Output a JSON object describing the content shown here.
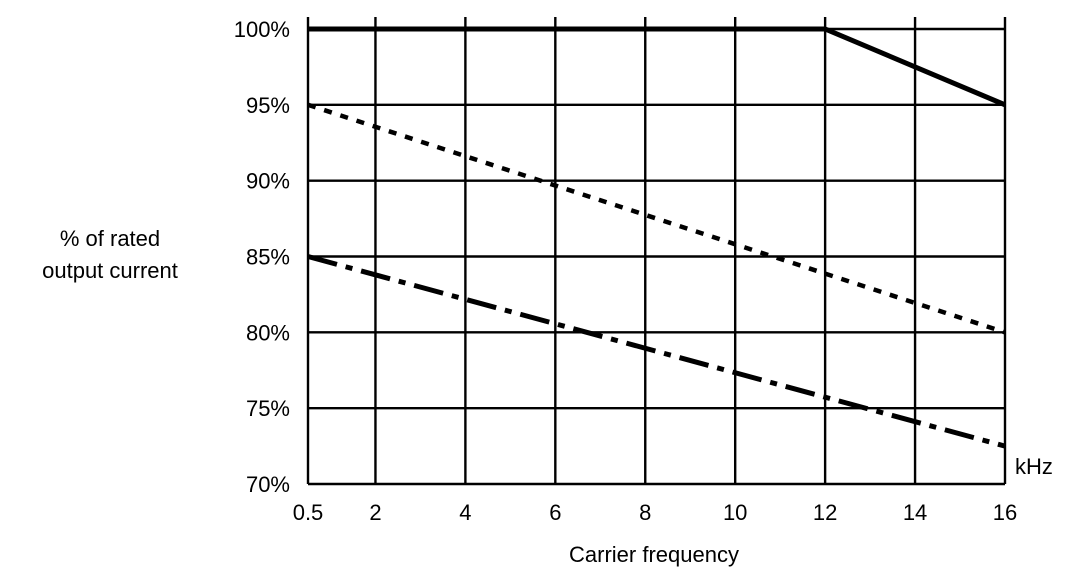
{
  "chart_data": {
    "type": "line",
    "title": "",
    "xlabel": "Carrier frequency",
    "ylabel_lines": [
      "% of rated",
      "output current"
    ],
    "x_unit_label": "kHz",
    "xlim": [
      0.5,
      16
    ],
    "ylim": [
      70,
      100
    ],
    "x_ticks": [
      0.5,
      2,
      4,
      6,
      8,
      10,
      12,
      14,
      16
    ],
    "x_tick_labels": [
      "0.5",
      "2",
      "4",
      "6",
      "8",
      "10",
      "12",
      "14",
      "16"
    ],
    "y_ticks": [
      70,
      75,
      80,
      85,
      90,
      95,
      100
    ],
    "y_tick_labels": [
      "70%",
      "75%",
      "80%",
      "85%",
      "90%",
      "95%",
      "100%"
    ],
    "grid": true,
    "series": [
      {
        "style": "solid",
        "x": [
          0.5,
          12,
          16
        ],
        "y": [
          100,
          100,
          95
        ]
      },
      {
        "style": "dotted",
        "x": [
          0.5,
          16
        ],
        "y": [
          95,
          80
        ]
      },
      {
        "style": "dash-dot",
        "x": [
          0.5,
          16
        ],
        "y": [
          85,
          72.5
        ]
      }
    ]
  }
}
